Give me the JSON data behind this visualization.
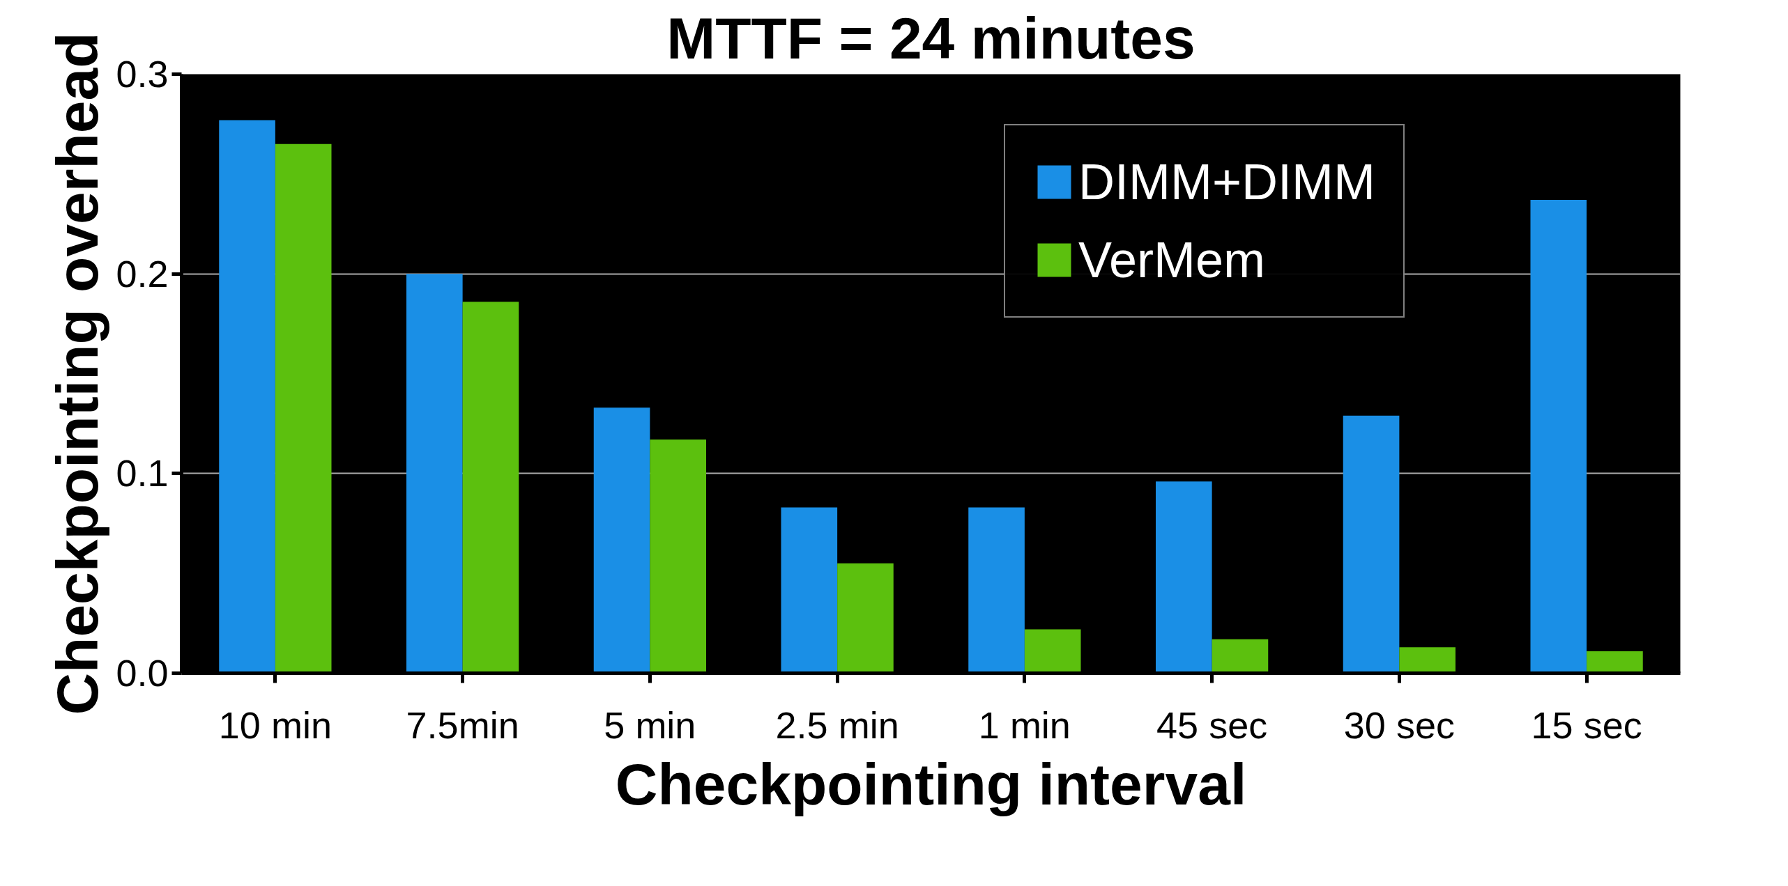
{
  "chart_data": {
    "type": "bar",
    "title": "MTTF = 24 minutes",
    "xlabel": "Checkpointing interval",
    "ylabel": "Checkpointing overhead",
    "categories": [
      "10 min",
      "7.5min",
      "5 min",
      "2.5 min",
      "1 min",
      "45 sec",
      "30 sec",
      "15 sec"
    ],
    "series": [
      {
        "name": "DIMM+DIMM",
        "color": "#1a8fe6",
        "values": [
          0.277,
          0.2,
          0.133,
          0.083,
          0.083,
          0.096,
          0.129,
          0.237
        ]
      },
      {
        "name": "VerMem",
        "color": "#5cc00e",
        "values": [
          0.265,
          0.186,
          0.117,
          0.055,
          0.022,
          0.017,
          0.013,
          0.011
        ]
      }
    ],
    "ylim": [
      0,
      0.3
    ],
    "yticks": [
      {
        "value": 0,
        "label": "0.0"
      },
      0.1,
      0.2,
      0.3
    ],
    "grid": "y",
    "legend": "top right"
  }
}
